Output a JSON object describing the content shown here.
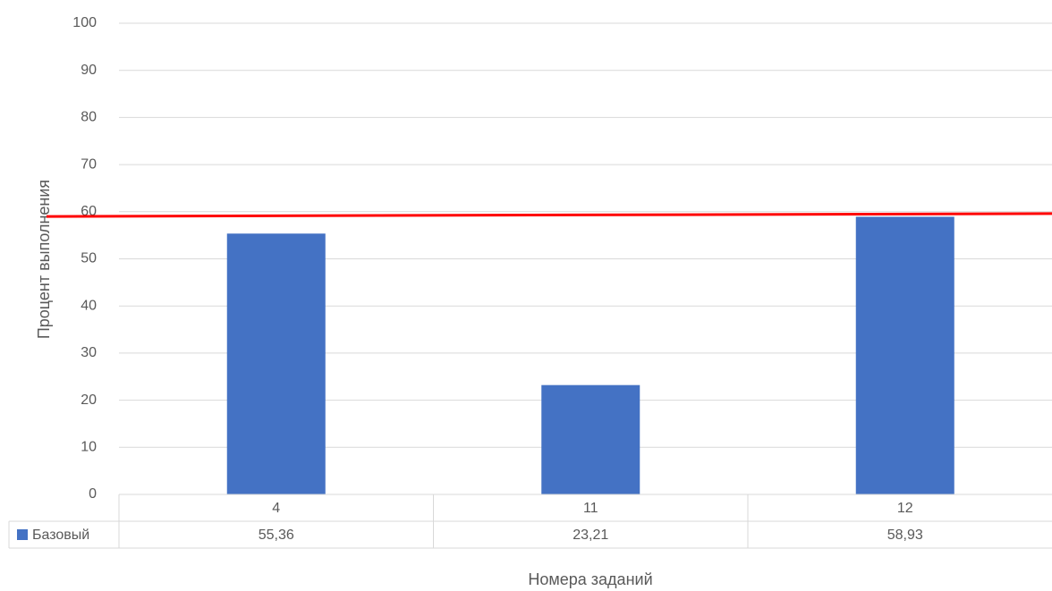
{
  "chart_data": {
    "type": "bar",
    "categories": [
      "4",
      "11",
      "12"
    ],
    "series": [
      {
        "name": "Базовый",
        "color": "#4472c4",
        "values": [
          55.36,
          23.21,
          58.93
        ],
        "value_labels": [
          "55,36",
          "23,21",
          "58,93"
        ]
      }
    ],
    "ylim": [
      0,
      100
    ],
    "yticks": [
      0,
      10,
      20,
      30,
      40,
      50,
      60,
      70,
      80,
      90,
      100
    ],
    "grid": true,
    "y_label": "Процент выполнения",
    "x_label": "Номера заданий",
    "reference_line": {
      "color": "#ff0000",
      "values": [
        59,
        59.6
      ]
    }
  }
}
